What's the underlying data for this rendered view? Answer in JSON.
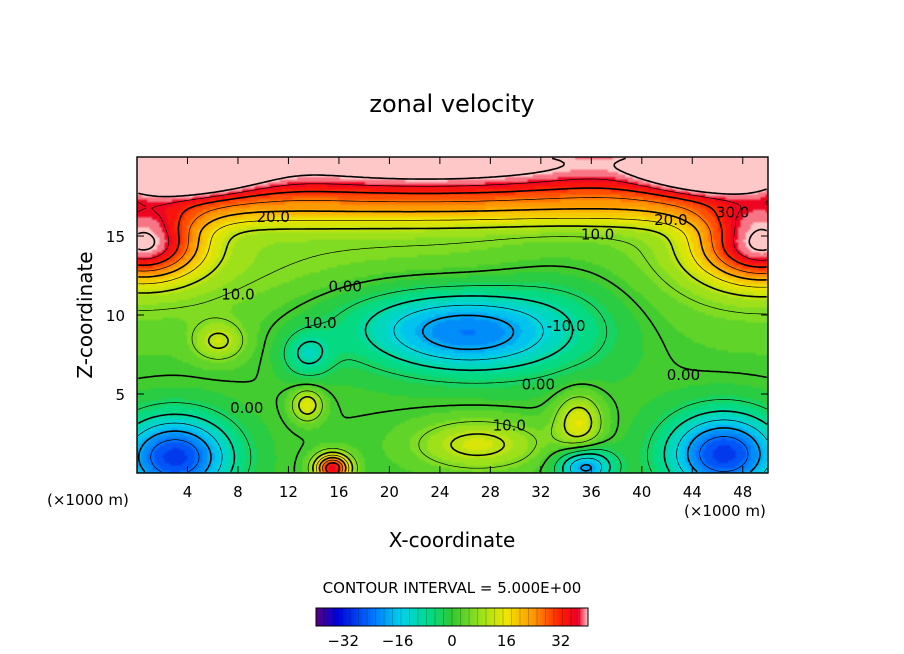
{
  "chart_data": {
    "type": "heatmap",
    "title": "zonal velocity",
    "xlabel": "X-coordinate",
    "ylabel": "Z-coordinate",
    "x_unit_left": "(×1000 m)",
    "x_unit_right": "(×1000 m)",
    "xlim": [
      0,
      50
    ],
    "ylim": [
      0,
      20
    ],
    "x_ticks": [
      4,
      8,
      12,
      16,
      20,
      24,
      28,
      32,
      36,
      40,
      44,
      48
    ],
    "y_ticks": [
      5,
      10,
      15
    ],
    "contour_interval_text": "CONTOUR INTERVAL = 5.000E+00",
    "colorbar": {
      "range": [
        -40,
        40
      ],
      "ticks": [
        -32,
        -16,
        0,
        16,
        32
      ],
      "tick_labels": [
        "−32",
        "−16",
        "0",
        "16",
        "32"
      ]
    },
    "contour_labels": [
      {
        "text": "20.0",
        "x": 10.8,
        "y": 16.2
      },
      {
        "text": "20.0",
        "x": 42.3,
        "y": 16.0
      },
      {
        "text": "30.0",
        "x": 47.2,
        "y": 16.5
      },
      {
        "text": "10.0",
        "x": 36.5,
        "y": 15.1
      },
      {
        "text": "10.0",
        "x": 8.0,
        "y": 11.3
      },
      {
        "text": "0.00",
        "x": 16.5,
        "y": 11.8
      },
      {
        "text": "10.0",
        "x": 14.5,
        "y": 9.5
      },
      {
        "text": "-10.0",
        "x": 34.0,
        "y": 9.3
      },
      {
        "text": "0.00",
        "x": 43.3,
        "y": 6.2
      },
      {
        "text": "0.00",
        "x": 31.8,
        "y": 5.6
      },
      {
        "text": "0.00",
        "x": 8.7,
        "y": 4.1
      },
      {
        "text": "10.0",
        "x": 29.5,
        "y": 3.0
      }
    ],
    "field_features": [
      {
        "x": 3,
        "y": 19.2,
        "v": 40,
        "sx": 6,
        "sy": 1.6
      },
      {
        "x": 23,
        "y": 19.6,
        "v": 28,
        "sx": 22,
        "sy": 2.0
      },
      {
        "x": 46.5,
        "y": 19.3,
        "v": 38,
        "sx": 6,
        "sy": 1.6
      },
      {
        "x": 0.5,
        "y": 14.5,
        "v": 35,
        "sx": 4.5,
        "sy": 2.2
      },
      {
        "x": 49.5,
        "y": 14.5,
        "v": 35,
        "sx": 5,
        "sy": 2.4
      },
      {
        "x": 6.5,
        "y": 8.3,
        "v": 10,
        "sx": 2.0,
        "sy": 1.2
      },
      {
        "x": 26.5,
        "y": 8.8,
        "v": -18,
        "sx": 7,
        "sy": 2.5
      },
      {
        "x": 21,
        "y": 9.8,
        "v": -10,
        "sx": 9,
        "sy": 3.0
      },
      {
        "x": 34,
        "y": 10.5,
        "v": -8,
        "sx": 7,
        "sy": 4.0
      },
      {
        "x": 13.5,
        "y": 7.5,
        "v": -10,
        "sx": 2.0,
        "sy": 1.5
      },
      {
        "x": 3,
        "y": 1.0,
        "v": -30,
        "sx": 4.5,
        "sy": 2.6
      },
      {
        "x": 46.5,
        "y": 1.2,
        "v": -30,
        "sx": 4.5,
        "sy": 2.6
      },
      {
        "x": 35.5,
        "y": 0.4,
        "v": -22,
        "sx": 2.2,
        "sy": 1.2
      },
      {
        "x": 15.5,
        "y": 0.3,
        "v": 35,
        "sx": 1.4,
        "sy": 0.9
      },
      {
        "x": 13.5,
        "y": 4.3,
        "v": 14,
        "sx": 1.2,
        "sy": 1.0
      },
      {
        "x": 35,
        "y": 3.2,
        "v": 14,
        "sx": 1.8,
        "sy": 1.8
      },
      {
        "x": 27,
        "y": 1.8,
        "v": 12,
        "sx": 5,
        "sy": 1.6
      }
    ]
  }
}
